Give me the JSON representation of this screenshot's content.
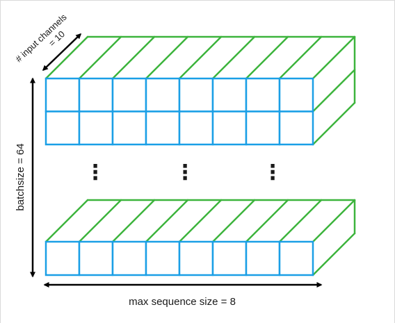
{
  "labels": {
    "input_channels": "# input channels",
    "input_channels_value": "= 10",
    "batchsize": "batchsize = 64",
    "max_sequence": "max sequence size = 8",
    "ellipsis": "⋮"
  },
  "grid": {
    "columns": 8,
    "top_block_rows": 2,
    "bottom_block_rows": 1
  },
  "colors": {
    "front_faces": "#1a9fe6",
    "depth_edges": "#3cb43c",
    "arrows": "#000000",
    "frame": "#d9d9d9"
  }
}
